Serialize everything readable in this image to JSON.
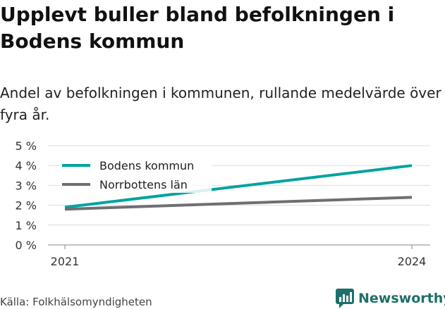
{
  "title": "Upplevt buller bland befolkningen i Bodens kommun",
  "subtitle": "Andel av befolkningen i kommunen, rullande medelvärde över fyra år.",
  "source": "Källa: Folkhälsomyndigheten",
  "brand": {
    "name": "Newsworthy",
    "icon": "bar-chart-chat-icon",
    "color": "#1f6f6a"
  },
  "chart_data": {
    "type": "line",
    "x": [
      "2021",
      "2024"
    ],
    "series": [
      {
        "name": "Bodens kommun",
        "values": [
          1.9,
          4.0
        ],
        "color": "#00a3a0"
      },
      {
        "name": "Norrbottens län",
        "values": [
          1.8,
          2.4
        ],
        "color": "#6e6e73"
      }
    ],
    "y_ticks": [
      "0 %",
      "1 %",
      "2 %",
      "3 %",
      "4 %",
      "5 %"
    ],
    "ylim": [
      0,
      5
    ],
    "grid": true,
    "legend": "top-left"
  }
}
